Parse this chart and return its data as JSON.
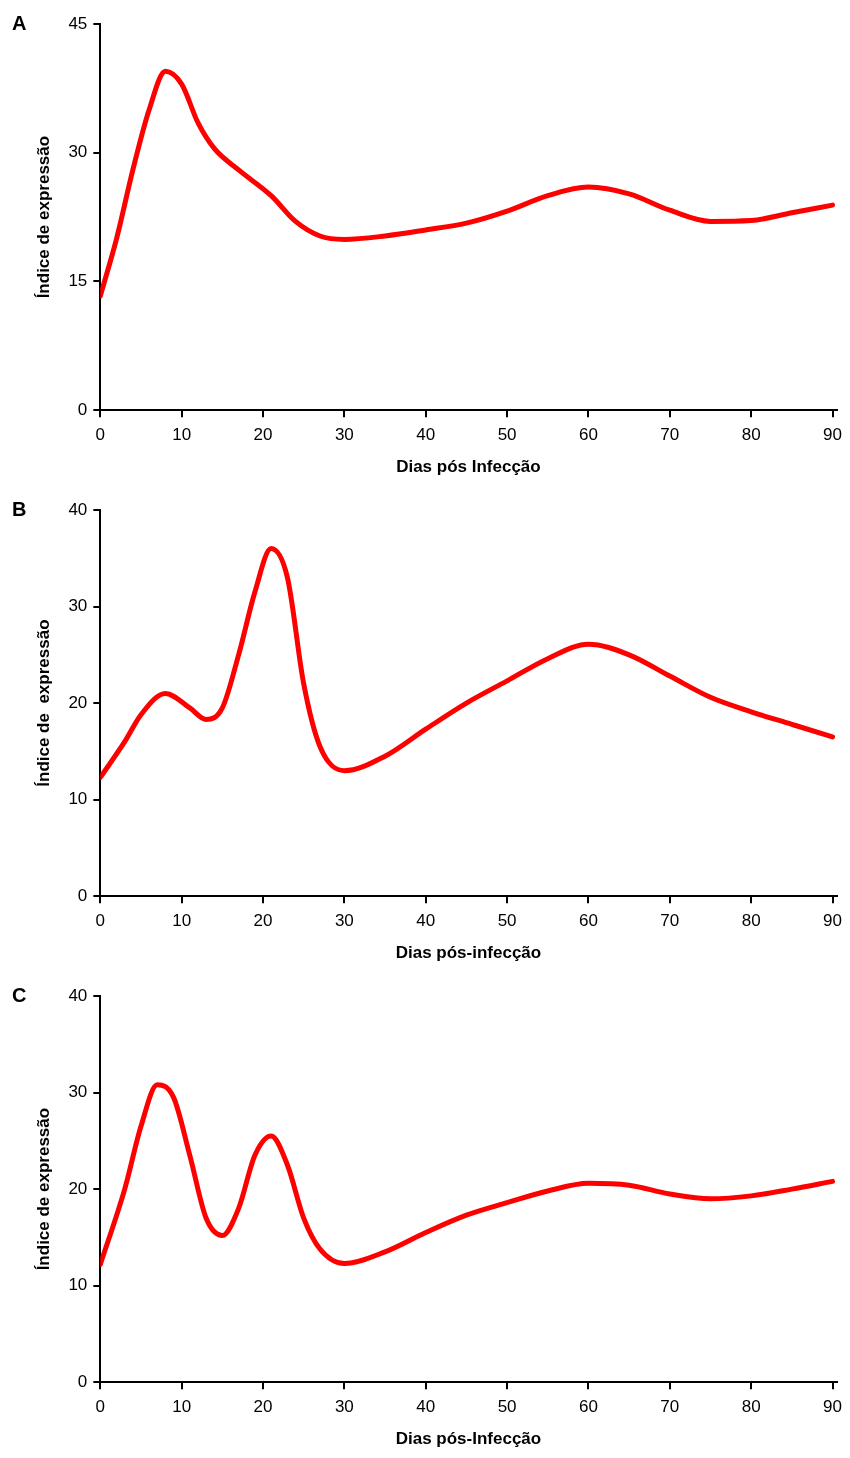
{
  "chart_data": [
    {
      "type": "line",
      "title": "A",
      "xlabel": "Dias pós Infecção",
      "ylabel": "Índice de expressão",
      "xlim": [
        0,
        90.5
      ],
      "xticks": [
        0,
        10,
        20,
        30,
        40,
        50,
        60,
        70,
        80,
        90
      ],
      "ylim": [
        0,
        45
      ],
      "yticks": [
        0,
        15,
        30,
        45
      ],
      "marker": "none",
      "legend": false,
      "grid": false,
      "series": [
        {
          "color": "#ff0000",
          "x": [
            0,
            2,
            4,
            6,
            8,
            10,
            12,
            14,
            17,
            21,
            24,
            27,
            30,
            35,
            40,
            45,
            50,
            55,
            60,
            65,
            70,
            75,
            80,
            85,
            90
          ],
          "values": [
            13.3,
            20,
            28,
            35,
            39.5,
            38,
            33.5,
            30.5,
            28,
            25,
            22,
            20.3,
            19.9,
            20.3,
            21,
            21.8,
            23.2,
            25,
            26,
            25.2,
            23.3,
            22,
            22.1,
            23,
            23.9
          ]
        }
      ]
    },
    {
      "type": "line",
      "title": "B",
      "xlabel": "Dias pós-infecção",
      "ylabel": "Índice de  expressão",
      "xlim": [
        0,
        90.5
      ],
      "xticks": [
        0,
        10,
        20,
        30,
        40,
        50,
        60,
        70,
        80,
        90
      ],
      "ylim": [
        0,
        40
      ],
      "yticks": [
        0,
        10,
        20,
        30,
        40
      ],
      "marker": "none",
      "legend": false,
      "grid": false,
      "series": [
        {
          "color": "#ff0000",
          "x": [
            0,
            3,
            5,
            8,
            11,
            13,
            15,
            17,
            19,
            21,
            23,
            25,
            27,
            30,
            35,
            40,
            45,
            50,
            55,
            60,
            65,
            70,
            75,
            80,
            85,
            90
          ],
          "values": [
            12.3,
            16,
            18.8,
            21,
            19.5,
            18.3,
            19.5,
            25,
            31.5,
            36,
            33,
            22,
            15.5,
            13,
            14.5,
            17.3,
            20,
            22.3,
            24.6,
            26.1,
            25,
            22.8,
            20.6,
            19.1,
            17.8,
            16.5
          ]
        }
      ]
    },
    {
      "type": "line",
      "title": "C",
      "xlabel": "Dias pós-Infecção",
      "ylabel": "Índice de expressão",
      "xlim": [
        0,
        90.5
      ],
      "xticks": [
        0,
        10,
        20,
        30,
        40,
        50,
        60,
        70,
        80,
        90
      ],
      "ylim": [
        0,
        40
      ],
      "yticks": [
        0,
        10,
        20,
        30,
        40
      ],
      "marker": "none",
      "legend": false,
      "grid": false,
      "series": [
        {
          "color": "#ff0000",
          "x": [
            0,
            3,
            5,
            7,
            9,
            11,
            13,
            15,
            17,
            19,
            21,
            23,
            25,
            27,
            30,
            35,
            40,
            45,
            50,
            55,
            60,
            65,
            70,
            75,
            80,
            85,
            90
          ],
          "values": [
            12.2,
            20,
            26.5,
            30.8,
            29.5,
            23.5,
            17,
            15.2,
            18,
            23.5,
            25.5,
            22.5,
            17,
            13.8,
            12.3,
            13.5,
            15.5,
            17.3,
            18.6,
            19.8,
            20.6,
            20.4,
            19.5,
            19,
            19.3,
            20,
            20.8
          ]
        }
      ]
    }
  ]
}
